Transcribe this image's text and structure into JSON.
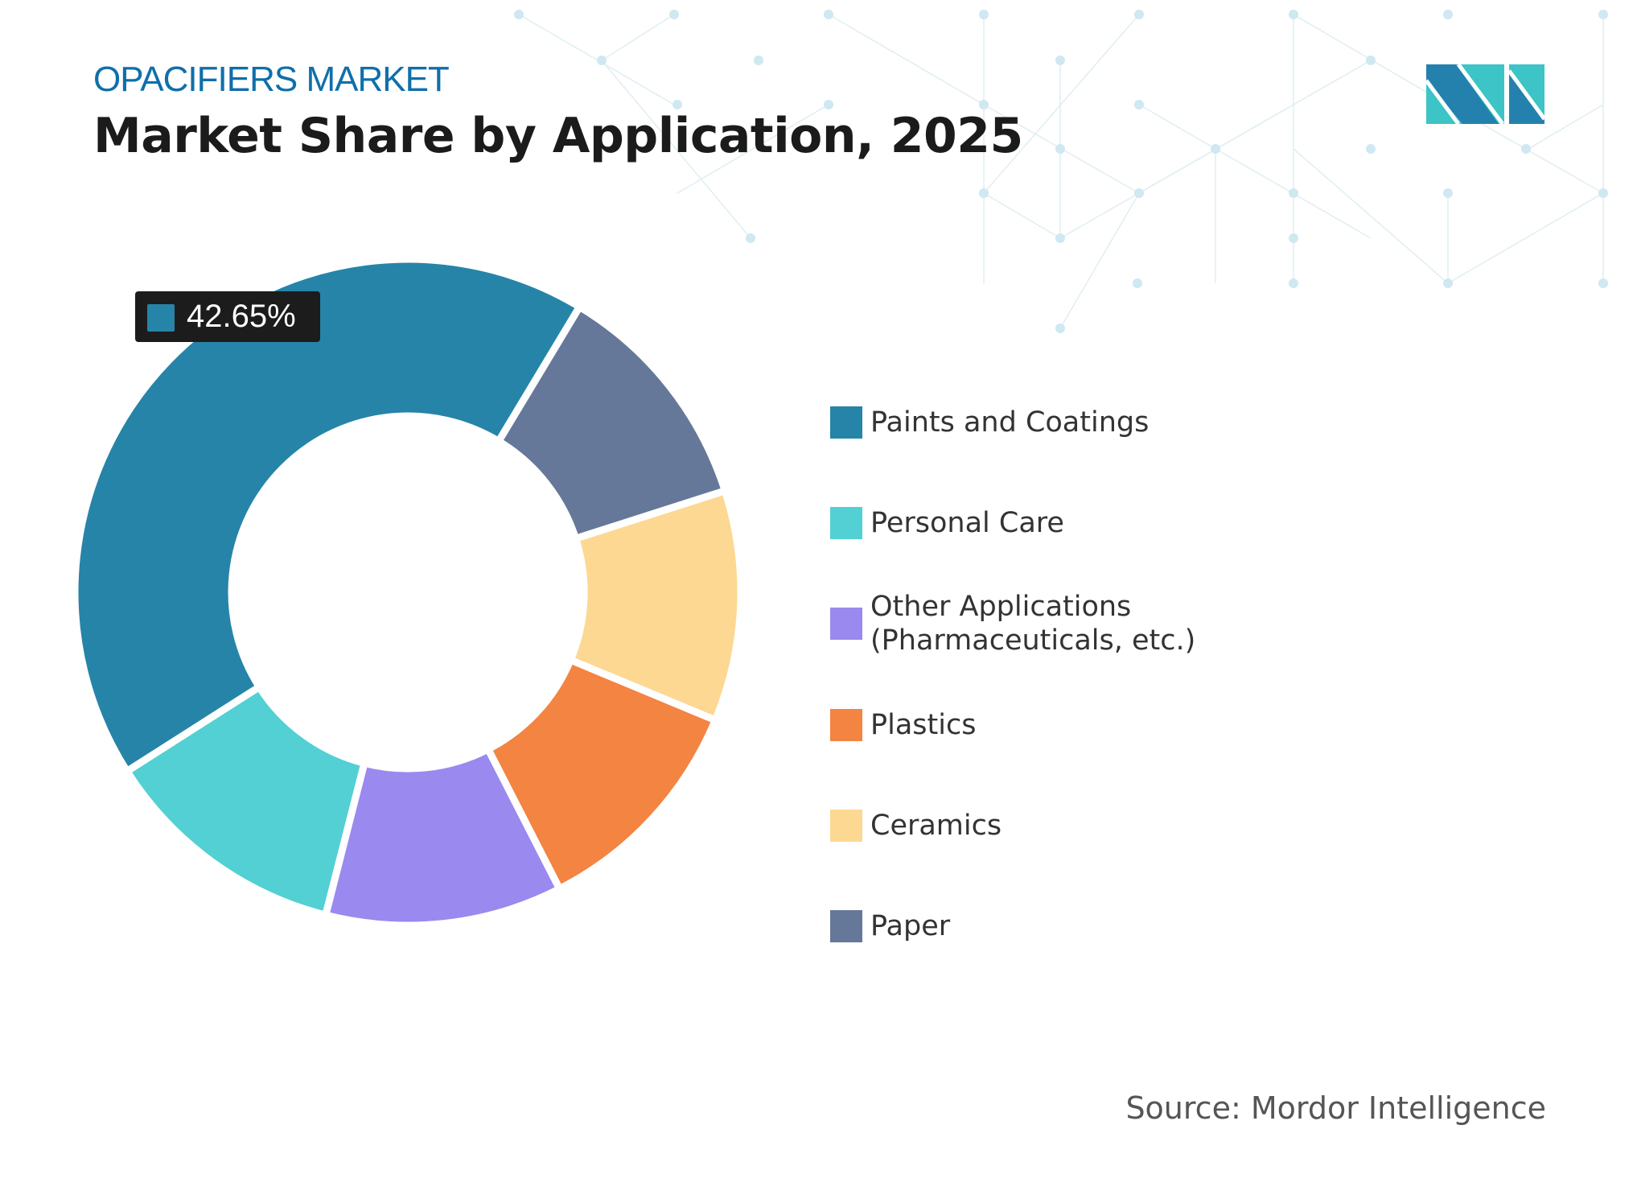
{
  "header": {
    "kicker": "OPACIFIERS MARKET",
    "title": "Market Share by Application, 2025"
  },
  "brand": {
    "logo": "MI",
    "colors": {
      "dark": "#2481ad",
      "light": "#3cc4c6"
    }
  },
  "chart_data": {
    "type": "pie",
    "variant": "donut",
    "title": "Market Share by Application, 2025",
    "categories": [
      "Paints and Coatings",
      "Paper",
      "Ceramics",
      "Plastics",
      "Other Applications (Pharmaceuticals, etc.)",
      "Personal Care"
    ],
    "values": [
      42.65,
      11.45,
      11.2,
      11.2,
      11.5,
      12.0
    ],
    "unit": "%",
    "colors": [
      "#2684a8",
      "#657899",
      "#fdd892",
      "#f38442",
      "#9a89ef",
      "#52d0d3"
    ],
    "data_labels": [
      {
        "category": "Paints and Coatings",
        "text": "42.65%"
      }
    ],
    "legend_position": "right"
  },
  "legend": [
    {
      "label": "Paints and Coatings",
      "color": "#2684a8"
    },
    {
      "label": "Personal Care",
      "color": "#52d0d3"
    },
    {
      "label": "Other Applications",
      "label2": "(Pharmaceuticals, etc.)",
      "color": "#9a89ef"
    },
    {
      "label": "Plastics",
      "color": "#f38442"
    },
    {
      "label": "Ceramics",
      "color": "#fdd892"
    },
    {
      "label": "Paper",
      "color": "#657899"
    }
  ],
  "callout": {
    "text": "42.65%",
    "color": "#2684a8"
  },
  "source": "Source: Mordor Intelligence"
}
